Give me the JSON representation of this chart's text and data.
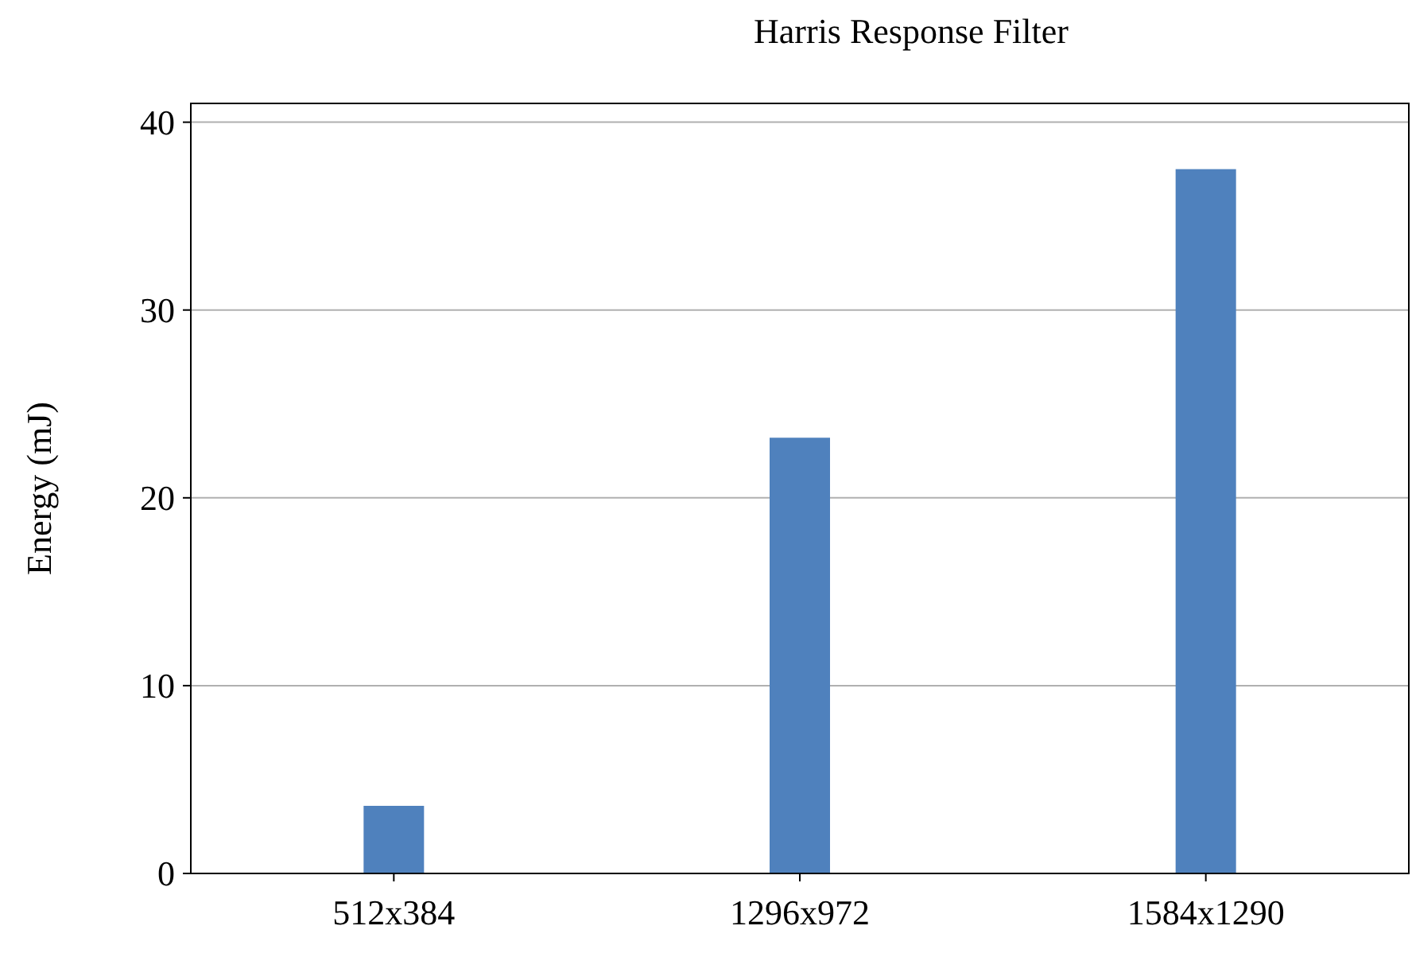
{
  "chart_data": {
    "type": "bar",
    "title": "Harris Response Filter",
    "ylabel": "Energy (mJ)",
    "categories": [
      "512x384",
      "1296x972",
      "1584x1290"
    ],
    "values": [
      3.6,
      23.2,
      37.5
    ],
    "color": "#4f81bd",
    "ylim": [
      0,
      41
    ],
    "yticks": [
      0,
      10,
      20,
      30,
      40
    ],
    "grid": "y"
  }
}
